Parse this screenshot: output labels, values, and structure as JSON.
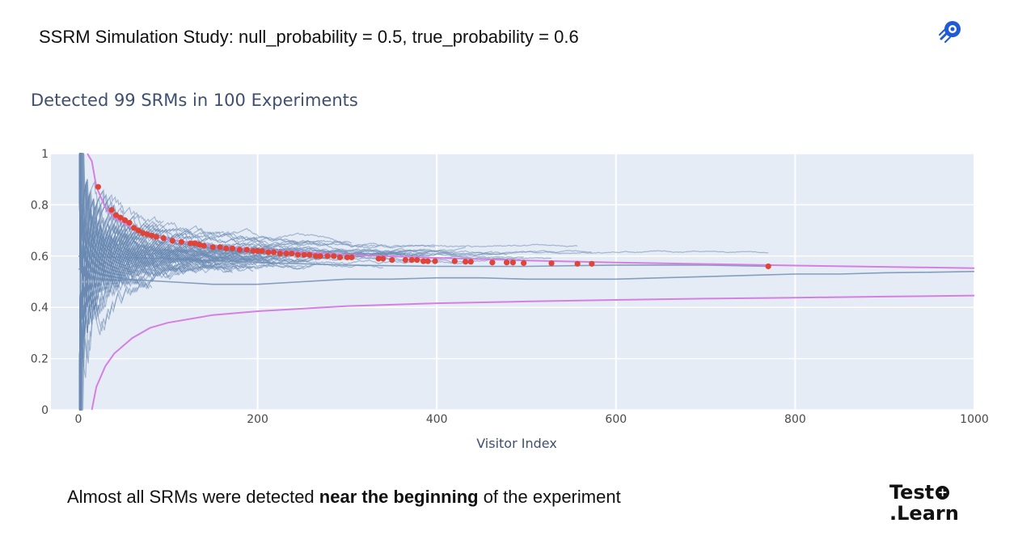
{
  "slide": {
    "title": "SSRM Simulation Study: null_probability = 0.5, true_probability = 0.6",
    "caption_pre": "Almost all SRMs were detected ",
    "caption_bold": "near the beginning",
    "caption_post": " of the experiment",
    "footer_logo_line1": "Test",
    "footer_logo_line2": ".Learn",
    "footer_logo_plus": "+",
    "top_logo_icon": "rocket-badge-icon"
  },
  "colors": {
    "plot_bg": "#e5ecf6",
    "grid": "#ffffff",
    "traces": "#6b8bb3",
    "bounds": "#d67fe3",
    "detections": "#e04438",
    "axis_text": "#3f4f70"
  },
  "chart_data": {
    "type": "line",
    "title": "Detected 99 SRMs in 100 Experiments",
    "xlabel": "Visitor Index",
    "ylabel": "",
    "xlim": [
      0,
      1000
    ],
    "ylim": [
      0,
      1
    ],
    "x_ticks": [
      0,
      200,
      400,
      600,
      800,
      1000
    ],
    "y_ticks": [
      0,
      0.2,
      0.4,
      0.6,
      0.8,
      1
    ],
    "x_tick_labels": [
      "0",
      "200",
      "400",
      "600",
      "800",
      "1000"
    ],
    "y_tick_labels": [
      "0",
      "0.2",
      "0.4",
      "0.6",
      "0.8",
      "1"
    ],
    "grid": true,
    "legend": "none",
    "experiments": 100,
    "detected": 99,
    "series": [
      {
        "role": "upper-bound",
        "x": [
          10,
          15,
          20,
          30,
          40,
          60,
          80,
          100,
          150,
          200,
          300,
          400,
          500,
          600,
          700,
          800,
          900,
          1000
        ],
        "y": [
          1.0,
          0.97,
          0.87,
          0.79,
          0.75,
          0.71,
          0.68,
          0.665,
          0.64,
          0.625,
          0.605,
          0.593,
          0.583,
          0.575,
          0.569,
          0.563,
          0.558,
          0.553
        ]
      },
      {
        "role": "lower-bound",
        "x": [
          15,
          20,
          30,
          40,
          60,
          80,
          100,
          150,
          200,
          300,
          400,
          500,
          600,
          700,
          800,
          900,
          1000
        ],
        "y": [
          0.0,
          0.09,
          0.17,
          0.22,
          0.28,
          0.32,
          0.34,
          0.37,
          0.385,
          0.405,
          0.416,
          0.423,
          0.429,
          0.434,
          0.438,
          0.442,
          0.446
        ]
      },
      {
        "role": "undetected-experiment",
        "x": [
          0,
          50,
          100,
          150,
          200,
          250,
          300,
          350,
          400,
          450,
          500,
          550,
          600,
          650,
          700,
          750,
          800,
          850,
          900,
          950,
          1000
        ],
        "y": [
          0.55,
          0.51,
          0.5,
          0.49,
          0.49,
          0.5,
          0.51,
          0.51,
          0.515,
          0.515,
          0.51,
          0.51,
          0.51,
          0.515,
          0.52,
          0.525,
          0.53,
          0.53,
          0.535,
          0.537,
          0.54
        ]
      },
      {
        "role": "stopped-experiment",
        "x": [
          0,
          100,
          200,
          300,
          400,
          500,
          600,
          700,
          770
        ],
        "y": [
          0.6,
          0.59,
          0.575,
          0.565,
          0.56,
          0.56,
          0.565,
          0.565,
          0.56
        ]
      }
    ],
    "detections": {
      "x": [
        22,
        37,
        42,
        47,
        52,
        57,
        62,
        67,
        72,
        77,
        82,
        87,
        95,
        105,
        115,
        125,
        130,
        135,
        140,
        150,
        158,
        165,
        172,
        180,
        188,
        195,
        200,
        205,
        212,
        218,
        225,
        232,
        238,
        245,
        252,
        258,
        265,
        270,
        278,
        285,
        292,
        300,
        305,
        335,
        340,
        350,
        365,
        372,
        378,
        385,
        390,
        398,
        420,
        432,
        438,
        462,
        478,
        485,
        497,
        528,
        557,
        573,
        770
      ],
      "y": [
        0.87,
        0.78,
        0.76,
        0.75,
        0.74,
        0.73,
        0.71,
        0.7,
        0.69,
        0.685,
        0.68,
        0.675,
        0.67,
        0.66,
        0.655,
        0.65,
        0.65,
        0.645,
        0.64,
        0.635,
        0.635,
        0.63,
        0.63,
        0.625,
        0.625,
        0.62,
        0.62,
        0.62,
        0.615,
        0.615,
        0.61,
        0.61,
        0.61,
        0.605,
        0.605,
        0.605,
        0.6,
        0.6,
        0.6,
        0.6,
        0.595,
        0.595,
        0.595,
        0.59,
        0.59,
        0.585,
        0.585,
        0.585,
        0.585,
        0.58,
        0.58,
        0.58,
        0.58,
        0.578,
        0.578,
        0.575,
        0.575,
        0.575,
        0.573,
        0.572,
        0.57,
        0.57,
        0.56
      ]
    }
  }
}
